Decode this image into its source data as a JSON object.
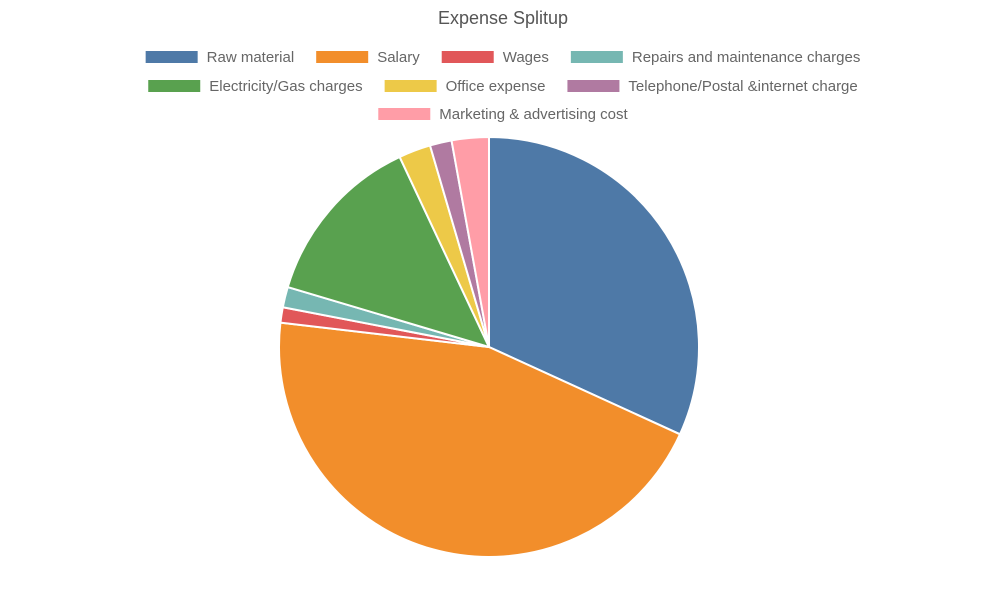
{
  "chart_data": {
    "type": "pie",
    "title": "Expense Splitup",
    "legend_position": "top",
    "slices": [
      {
        "label": "Raw material",
        "value": 32.3,
        "color": "#4e79a7"
      },
      {
        "label": "Salary",
        "value": 45.7,
        "color": "#f28e2b"
      },
      {
        "label": "Wages",
        "value": 1.2,
        "color": "#e15759"
      },
      {
        "label": "Repairs and maintenance charges",
        "value": 1.6,
        "color": "#76b7b2"
      },
      {
        "label": "Electricity/Gas charges",
        "value": 13.6,
        "color": "#59a14f"
      },
      {
        "label": "Office expense",
        "value": 2.5,
        "color": "#edc948"
      },
      {
        "label": "Telephone/Postal &internet charge",
        "value": 1.7,
        "color": "#b07aa1"
      },
      {
        "label": "Marketing & advertising cost",
        "value": 2.9,
        "color": "#ff9da7"
      }
    ]
  }
}
